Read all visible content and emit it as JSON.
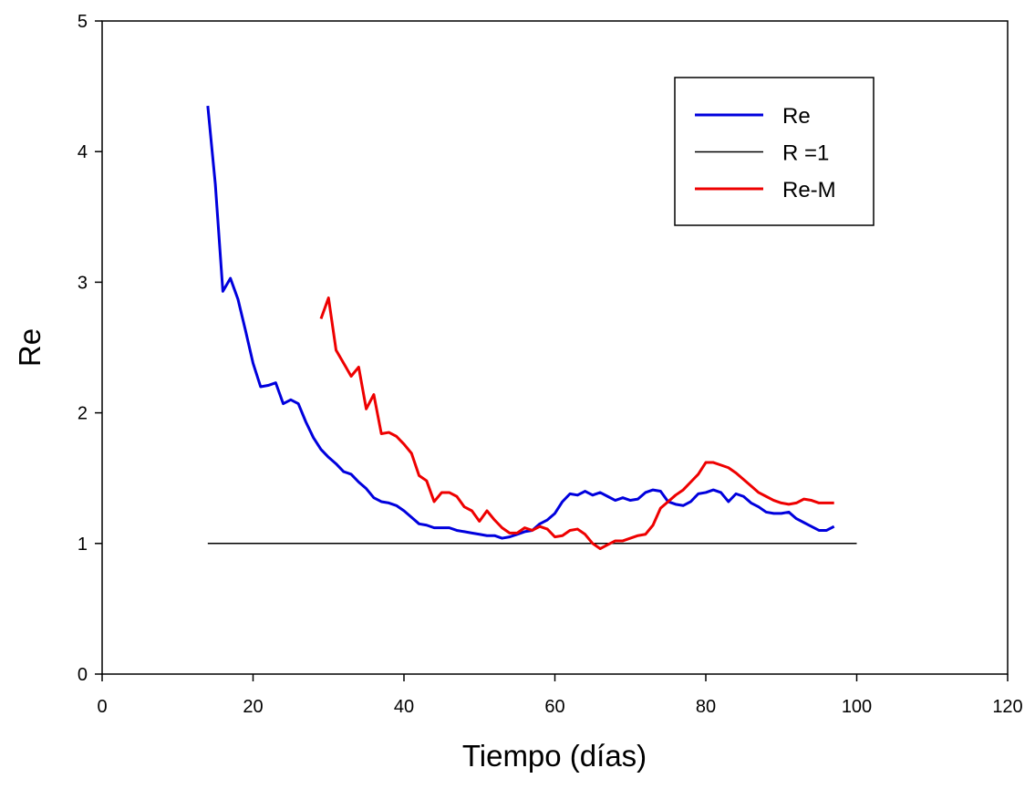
{
  "chart_data": {
    "type": "line",
    "xlabel": "Tiempo (días)",
    "ylabel": "Re",
    "xlim": [
      0,
      120
    ],
    "xticks": [
      0,
      20,
      40,
      60,
      80,
      100,
      120
    ],
    "ylim": [
      0,
      5
    ],
    "yticks": [
      0,
      1,
      2,
      3,
      4,
      5
    ],
    "legend": "upper right",
    "series": [
      {
        "name": "Re",
        "color": "#0000dd",
        "x": [
          14,
          15,
          16,
          17,
          18,
          19,
          20,
          21,
          22,
          23,
          24,
          25,
          26,
          27,
          28,
          29,
          30,
          31,
          32,
          33,
          34,
          35,
          36,
          37,
          38,
          39,
          40,
          41,
          42,
          43,
          44,
          45,
          46,
          47,
          48,
          49,
          50,
          51,
          52,
          53,
          54,
          55,
          56,
          57,
          58,
          59,
          60,
          61,
          62,
          63,
          64,
          65,
          66,
          67,
          68,
          69,
          70,
          71,
          72,
          73,
          74,
          75,
          76,
          77,
          78,
          79,
          80,
          81,
          82,
          83,
          84,
          85,
          86,
          87,
          88,
          89,
          90,
          91,
          92,
          93,
          94,
          95,
          96,
          97
        ],
        "values": [
          4.35,
          3.75,
          2.93,
          3.03,
          2.87,
          2.63,
          2.38,
          2.2,
          2.21,
          2.23,
          2.07,
          2.1,
          2.07,
          1.93,
          1.81,
          1.72,
          1.66,
          1.61,
          1.55,
          1.53,
          1.47,
          1.42,
          1.35,
          1.32,
          1.31,
          1.29,
          1.25,
          1.2,
          1.15,
          1.14,
          1.12,
          1.12,
          1.12,
          1.1,
          1.09,
          1.08,
          1.07,
          1.06,
          1.06,
          1.04,
          1.05,
          1.07,
          1.09,
          1.1,
          1.15,
          1.18,
          1.23,
          1.32,
          1.38,
          1.37,
          1.4,
          1.37,
          1.39,
          1.36,
          1.33,
          1.35,
          1.33,
          1.34,
          1.39,
          1.41,
          1.4,
          1.32,
          1.3,
          1.29,
          1.32,
          1.38,
          1.39,
          1.41,
          1.39,
          1.32,
          1.38,
          1.36,
          1.31,
          1.28,
          1.24,
          1.23,
          1.23,
          1.24,
          1.19,
          1.16,
          1.13,
          1.1,
          1.1,
          1.13
        ]
      },
      {
        "name": "R =1",
        "color": "#000000",
        "x": [
          14,
          100
        ],
        "values": [
          1,
          1
        ]
      },
      {
        "name": "Re-M",
        "color": "#ee0000",
        "x": [
          29,
          30,
          31,
          32,
          33,
          34,
          35,
          36,
          37,
          38,
          39,
          40,
          41,
          42,
          43,
          44,
          45,
          46,
          47,
          48,
          49,
          50,
          51,
          52,
          53,
          54,
          55,
          56,
          57,
          58,
          59,
          60,
          61,
          62,
          63,
          64,
          65,
          66,
          67,
          68,
          69,
          70,
          71,
          72,
          73,
          74,
          75,
          76,
          77,
          78,
          79,
          80,
          81,
          82,
          83,
          84,
          85,
          86,
          87,
          88,
          89,
          90,
          91,
          92,
          93,
          94,
          95,
          96,
          97
        ],
        "values": [
          2.72,
          2.88,
          2.48,
          2.38,
          2.28,
          2.35,
          2.03,
          2.14,
          1.84,
          1.85,
          1.82,
          1.76,
          1.69,
          1.52,
          1.48,
          1.32,
          1.39,
          1.39,
          1.36,
          1.28,
          1.25,
          1.17,
          1.25,
          1.18,
          1.12,
          1.08,
          1.08,
          1.12,
          1.1,
          1.13,
          1.11,
          1.05,
          1.06,
          1.1,
          1.11,
          1.07,
          1.0,
          0.96,
          0.99,
          1.02,
          1.02,
          1.04,
          1.06,
          1.07,
          1.14,
          1.27,
          1.32,
          1.37,
          1.41,
          1.47,
          1.53,
          1.62,
          1.62,
          1.6,
          1.58,
          1.54,
          1.49,
          1.44,
          1.39,
          1.36,
          1.33,
          1.31,
          1.3,
          1.31,
          1.34,
          1.33,
          1.31,
          1.31,
          1.31
        ]
      }
    ]
  }
}
